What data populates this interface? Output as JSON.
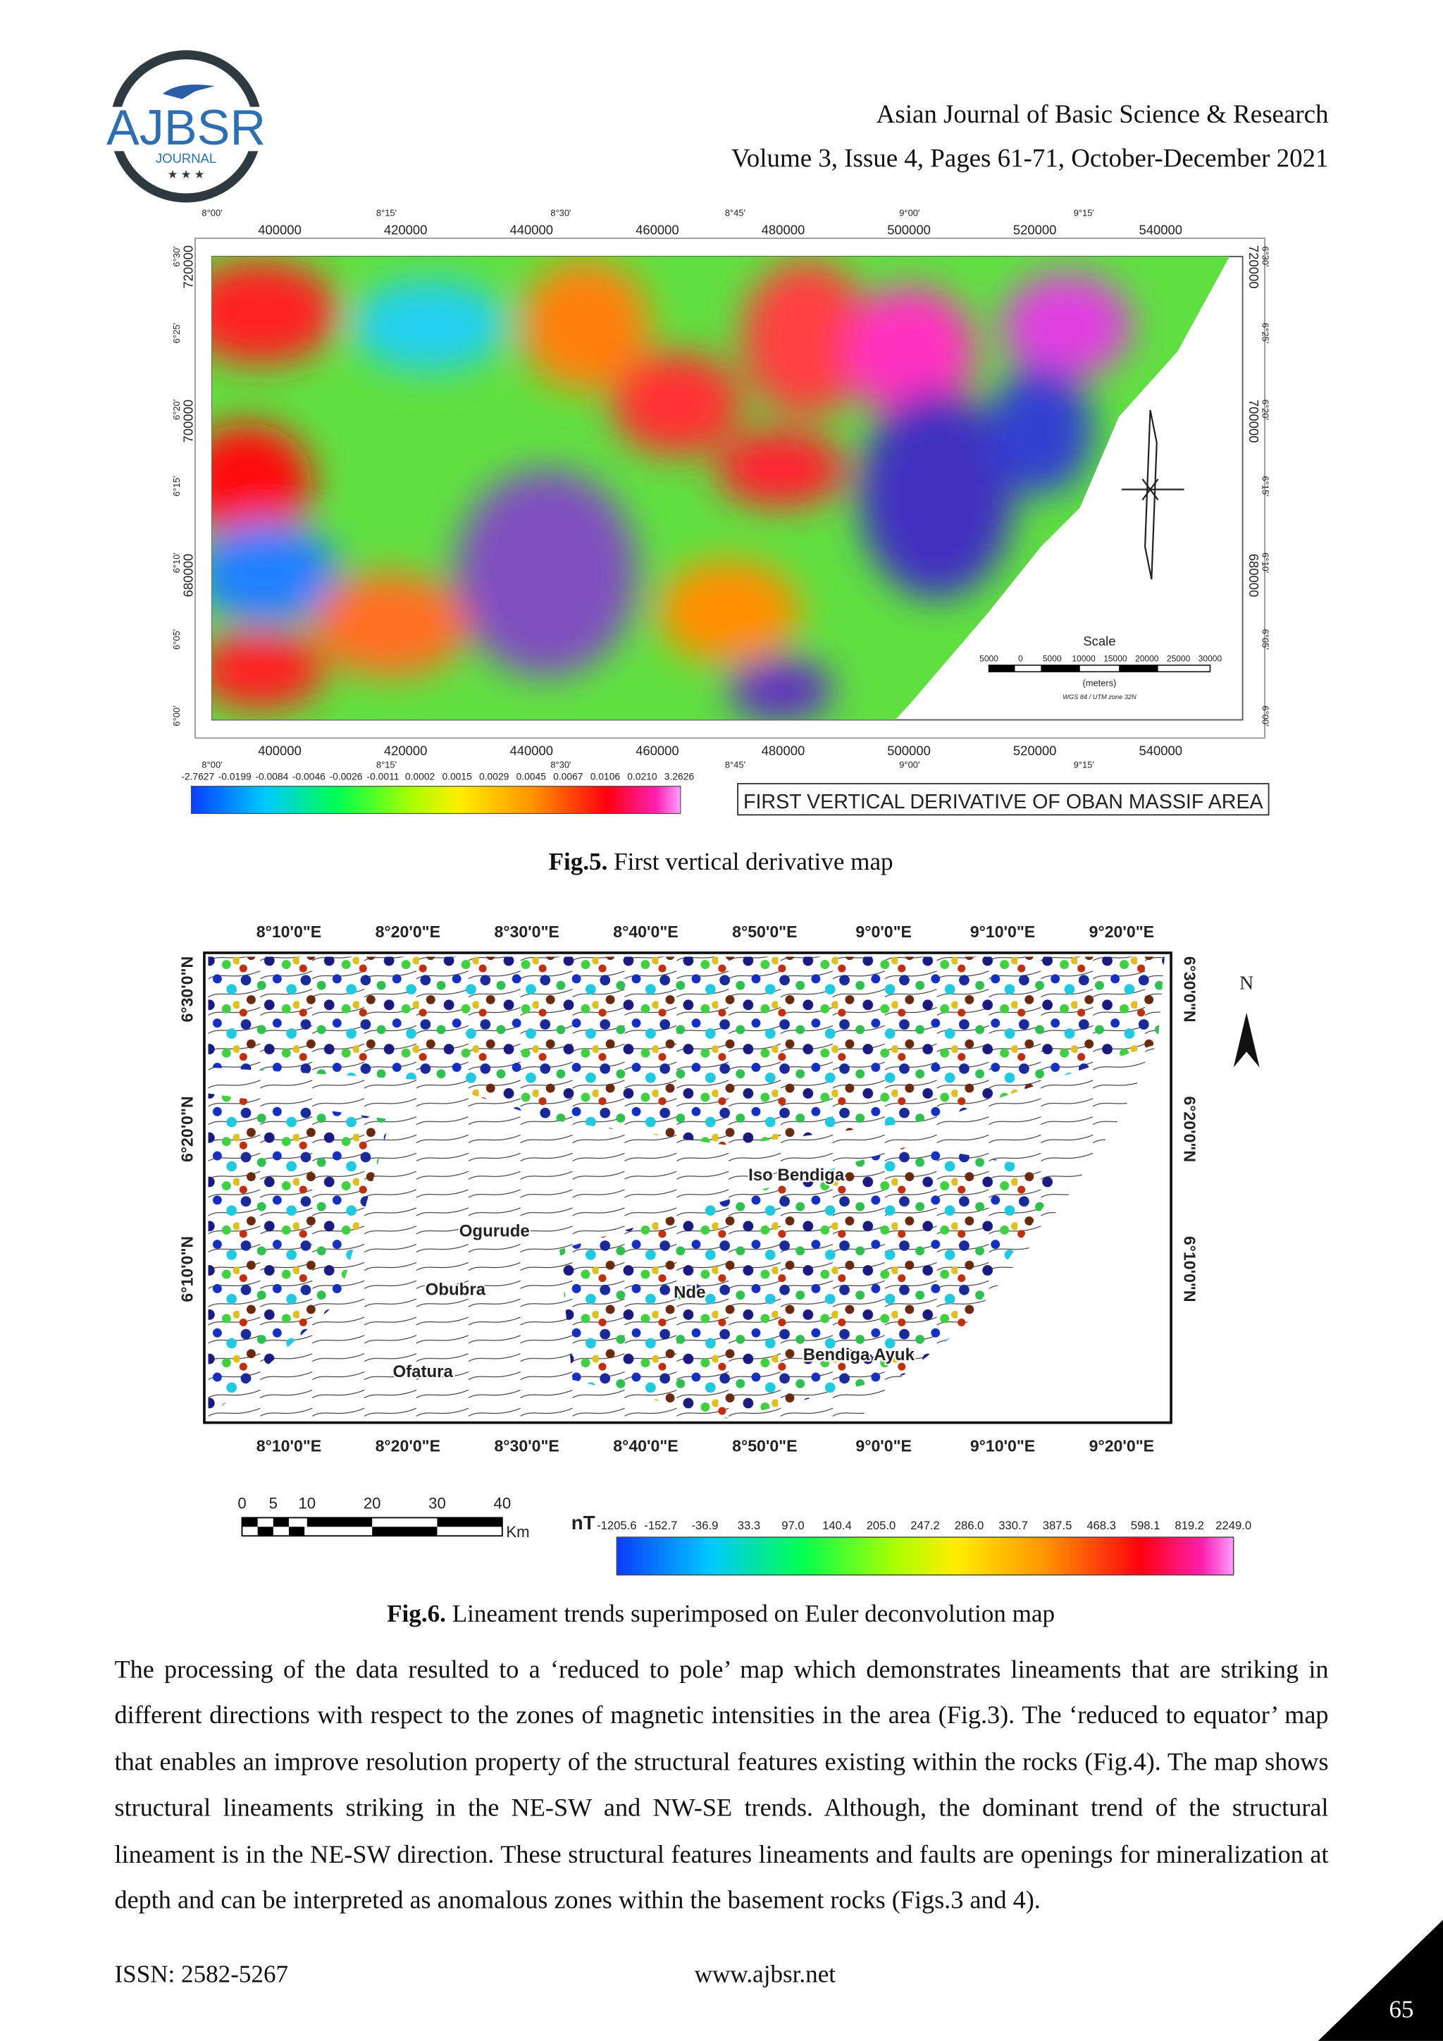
{
  "header": {
    "logo": {
      "name": "AJBSR",
      "subtitle": "JOURNAL"
    },
    "journal": "Asian Journal of Basic Science & Research",
    "issue": "Volume 3, Issue 4, Pages 61-71, October-December 2021"
  },
  "figures": [
    {
      "eastings": [
        "400000",
        "420000",
        "440000",
        "460000",
        "480000",
        "500000",
        "520000",
        "540000"
      ],
      "longitudes": [
        "8°00'",
        "8°15'",
        "8°30'",
        "8°45'",
        "9°00'",
        "9°15'"
      ],
      "northings": [
        "720000",
        "700000",
        "680000"
      ],
      "latitudes": [
        "6°30'",
        "6°25'",
        "6°20'",
        "6°15'",
        "6°10'",
        "6°05'",
        "6°00'"
      ],
      "colorbar": [
        "-2.7627",
        "-0.0199",
        "-0.0084",
        "-0.0046",
        "-0.0026",
        "-0.0011",
        "0.0002",
        "0.0015",
        "0.0029",
        "0.0045",
        "0.0067",
        "0.0106",
        "0.0210",
        "3.2626"
      ],
      "map_title": "FIRST VERTICAL DERIVATIVE OF OBAN MASSIF AREA",
      "scale": {
        "title": "Scale",
        "ticks": [
          "5000",
          "0",
          "5000",
          "10000",
          "15000",
          "20000",
          "25000",
          "30000"
        ],
        "unit": "(meters)",
        "projection": "WGS 84 / UTM zone 32N"
      },
      "caption": {
        "label": "Fig.5.",
        "text": " First vertical derivative map"
      }
    },
    {
      "longitudes": [
        "8°10'0\"E",
        "8°20'0\"E",
        "8°30'0\"E",
        "8°40'0\"E",
        "8°50'0\"E",
        "9°0'0\"E",
        "9°10'0\"E",
        "9°20'0\"E"
      ],
      "latitudes": [
        "6°30'0\"N",
        "6°20'0\"N",
        "6°10'0\"N"
      ],
      "places": [
        "Ogurude",
        "Obubra",
        "Ofatura",
        "Nde",
        "Iso Bendiga",
        "Bendiga Ayuk"
      ],
      "north": "N",
      "scale": {
        "ticks": [
          "0",
          "5",
          "10",
          "20",
          "30",
          "40"
        ],
        "unit": "Km"
      },
      "colorbar_unit": "nT",
      "colorbar": [
        "-1205.6",
        "-152.7",
        "-36.9",
        "33.3",
        "97.0",
        "140.4",
        "205.0",
        "247.2",
        "286.0",
        "330.7",
        "387.5",
        "468.3",
        "598.1",
        "819.2",
        "2249.0"
      ],
      "caption": {
        "label": "Fig.6.",
        "text": " Lineament trends superimposed on Euler deconvolution map"
      }
    }
  ],
  "body": "The processing of the data resulted to a ‘reduced to pole’ map which demonstrates lineaments that are striking in different directions with respect to the zones of magnetic intensities in the area (Fig.3). The ‘reduced to equator’ map that enables an improve resolution property of the structural features existing within the rocks (Fig.4). The map shows structural lineaments striking in the NE-SW and NW-SE trends. Although, the dominant trend of the structural lineament is in the NE-SW direction. These structural features lineaments and faults are openings for mineralization at depth and can be interpreted as anomalous zones within the basement rocks (Figs.3 and 4).",
  "footer": {
    "issn": "ISSN: 2582-5267",
    "website": "www.ajbsr.net",
    "page": "65"
  }
}
